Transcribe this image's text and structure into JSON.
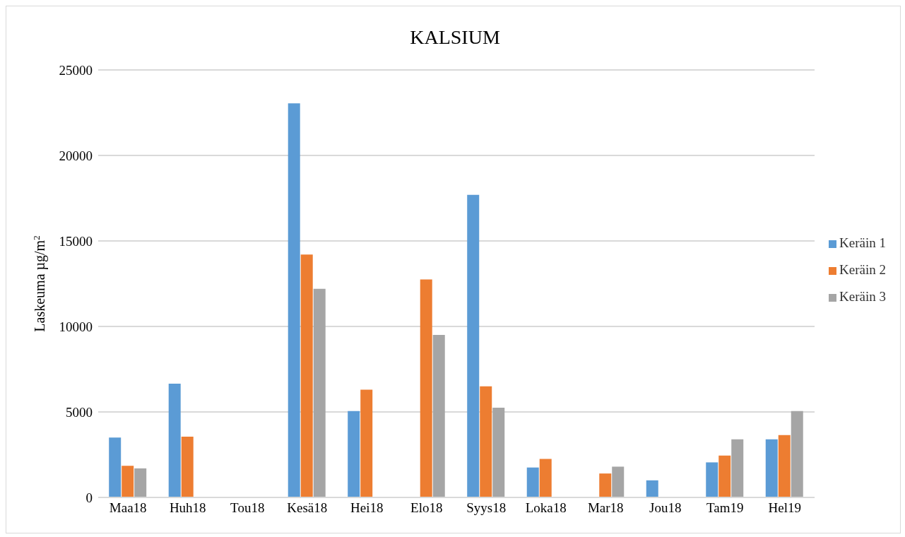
{
  "chart_data": {
    "type": "bar",
    "title": "KALSIUM",
    "ylabel": "Laskeuma µg/m$^{2}$",
    "categories": [
      "Maa18",
      "Huh18",
      "Tou18",
      "Kesä18",
      "Hei18",
      "Elo18",
      "Syys18",
      "Loka18",
      "Mar18",
      "Jou18",
      "Tam19",
      "Hel19"
    ],
    "series": [
      {
        "name": "Keräin 1",
        "color": "#5b9bd5",
        "values": [
          3500,
          6650,
          null,
          23050,
          5050,
          null,
          17700,
          1750,
          null,
          1000,
          2050,
          3400
        ]
      },
      {
        "name": "Keräin 2",
        "color": "#ed7d31",
        "values": [
          1850,
          3550,
          null,
          14200,
          6300,
          12750,
          6500,
          2250,
          1400,
          null,
          2450,
          3650
        ]
      },
      {
        "name": "Keräin 3",
        "color": "#a5a5a5",
        "values": [
          1700,
          null,
          null,
          12200,
          null,
          9500,
          5250,
          null,
          1800,
          null,
          3400,
          5050
        ]
      }
    ],
    "ylim": [
      0,
      25000
    ],
    "yticks": [
      0,
      5000,
      10000,
      15000,
      20000,
      25000
    ],
    "grid": "y",
    "legend": "right"
  }
}
